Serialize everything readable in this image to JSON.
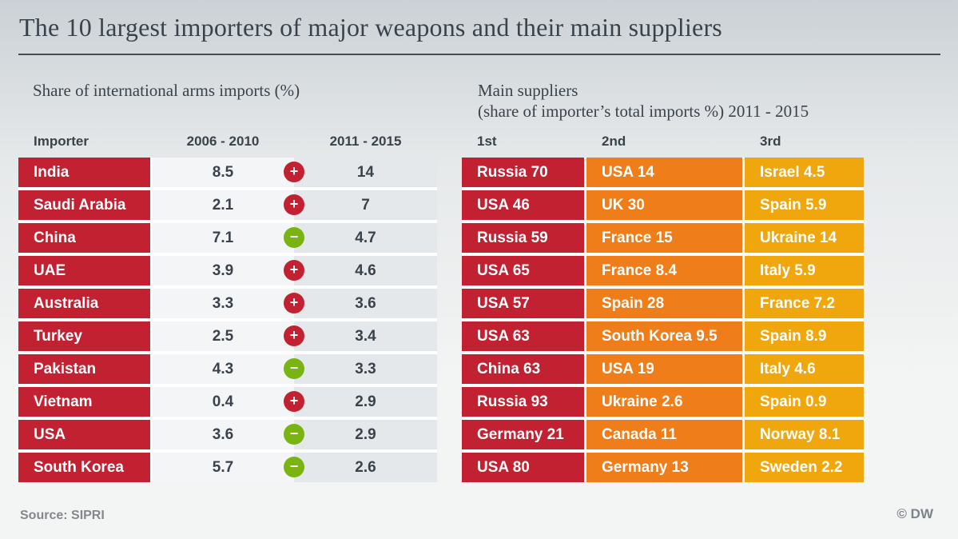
{
  "title": "The 10 largest importers of major weapons and their main suppliers",
  "left_section": {
    "subtitle": "Share of international arms imports (%)",
    "columns": {
      "importer": "Importer",
      "period1": "2006 - 2010",
      "period2": "2011 - 2015"
    },
    "rows": [
      {
        "importer": "India",
        "v2006": "8.5",
        "trend": "up",
        "v2011": "14"
      },
      {
        "importer": "Saudi Arabia",
        "v2006": "2.1",
        "trend": "up",
        "v2011": "7"
      },
      {
        "importer": "China",
        "v2006": "7.1",
        "trend": "down",
        "v2011": "4.7"
      },
      {
        "importer": "UAE",
        "v2006": "3.9",
        "trend": "up",
        "v2011": "4.6"
      },
      {
        "importer": "Australia",
        "v2006": "3.3",
        "trend": "up",
        "v2011": "3.6"
      },
      {
        "importer": "Turkey",
        "v2006": "2.5",
        "trend": "up",
        "v2011": "3.4"
      },
      {
        "importer": "Pakistan",
        "v2006": "4.3",
        "trend": "down",
        "v2011": "3.3"
      },
      {
        "importer": "Vietnam",
        "v2006": "0.4",
        "trend": "up",
        "v2011": "2.9"
      },
      {
        "importer": "USA",
        "v2006": "3.6",
        "trend": "down",
        "v2011": "2.9"
      },
      {
        "importer": "South Korea",
        "v2006": "5.7",
        "trend": "down",
        "v2011": "2.6"
      }
    ]
  },
  "right_section": {
    "subtitle_line1": "Main suppliers",
    "subtitle_line2": "(share of importer’s total imports %) 2011 - 2015",
    "columns": {
      "first": "1st",
      "second": "2nd",
      "third": "3rd"
    },
    "rows": [
      {
        "first": "Russia 70",
        "second": "USA 14",
        "third": "Israel 4.5"
      },
      {
        "first": "USA 46",
        "second": "UK 30",
        "third": "Spain 5.9"
      },
      {
        "first": "Russia 59",
        "second": "France 15",
        "third": "Ukraine 14"
      },
      {
        "first": "USA 65",
        "second": "France 8.4",
        "third": "Italy 5.9"
      },
      {
        "first": "USA 57",
        "second": "Spain 28",
        "third": "France 7.2"
      },
      {
        "first": "USA 63",
        "second": "South Korea 9.5",
        "third": "Spain 8.9"
      },
      {
        "first": "China 63",
        "second": "USA 19",
        "third": "Italy 4.6"
      },
      {
        "first": "Russia 93",
        "second": "Ukraine 2.6",
        "third": "Spain 0.9"
      },
      {
        "first": "Germany 21",
        "second": "Canada 11",
        "third": "Norway 8.1"
      },
      {
        "first": "USA 80",
        "second": "Germany 13",
        "third": "Sweden 2.2"
      }
    ]
  },
  "icons": {
    "plus": "+",
    "minus": "−"
  },
  "footer": {
    "source": "Source: SIPRI",
    "credit": "© DW"
  },
  "colors": {
    "red": "#c22132",
    "orange": "#ee7d1a",
    "amber": "#f0a60d",
    "green": "#7ab412",
    "ink": "#3a424b",
    "cell-light": "#f3f5f6",
    "cell-dark": "#e5e8ea"
  },
  "chart_data": {
    "type": "table",
    "title": "The 10 largest importers of major weapons and their main suppliers",
    "source": "SIPRI",
    "tables": [
      {
        "title": "Share of international arms imports (%)",
        "columns": [
          "Importer",
          "2006 - 2010",
          "change",
          "2011 - 2015"
        ],
        "rows": [
          [
            "India",
            8.5,
            "increase",
            14
          ],
          [
            "Saudi Arabia",
            2.1,
            "increase",
            7
          ],
          [
            "China",
            7.1,
            "decrease",
            4.7
          ],
          [
            "UAE",
            3.9,
            "increase",
            4.6
          ],
          [
            "Australia",
            3.3,
            "increase",
            3.6
          ],
          [
            "Turkey",
            2.5,
            "increase",
            3.4
          ],
          [
            "Pakistan",
            4.3,
            "decrease",
            3.3
          ],
          [
            "Vietnam",
            0.4,
            "increase",
            2.9
          ],
          [
            "USA",
            3.6,
            "decrease",
            2.9
          ],
          [
            "South Korea",
            5.7,
            "decrease",
            2.6
          ]
        ]
      },
      {
        "title": "Main suppliers (share of importer's total imports %) 2011 - 2015",
        "columns": [
          "1st",
          "2nd",
          "3rd"
        ],
        "rows": [
          [
            {
              "supplier": "Russia",
              "share": 70
            },
            {
              "supplier": "USA",
              "share": 14
            },
            {
              "supplier": "Israel",
              "share": 4.5
            }
          ],
          [
            {
              "supplier": "USA",
              "share": 46
            },
            {
              "supplier": "UK",
              "share": 30
            },
            {
              "supplier": "Spain",
              "share": 5.9
            }
          ],
          [
            {
              "supplier": "Russia",
              "share": 59
            },
            {
              "supplier": "France",
              "share": 15
            },
            {
              "supplier": "Ukraine",
              "share": 14
            }
          ],
          [
            {
              "supplier": "USA",
              "share": 65
            },
            {
              "supplier": "France",
              "share": 8.4
            },
            {
              "supplier": "Italy",
              "share": 5.9
            }
          ],
          [
            {
              "supplier": "USA",
              "share": 57
            },
            {
              "supplier": "Spain",
              "share": 28
            },
            {
              "supplier": "France",
              "share": 7.2
            }
          ],
          [
            {
              "supplier": "USA",
              "share": 63
            },
            {
              "supplier": "South Korea",
              "share": 9.5
            },
            {
              "supplier": "Spain",
              "share": 8.9
            }
          ],
          [
            {
              "supplier": "China",
              "share": 63
            },
            {
              "supplier": "USA",
              "share": 19
            },
            {
              "supplier": "Italy",
              "share": 4.6
            }
          ],
          [
            {
              "supplier": "Russia",
              "share": 93
            },
            {
              "supplier": "Ukraine",
              "share": 2.6
            },
            {
              "supplier": "Spain",
              "share": 0.9
            }
          ],
          [
            {
              "supplier": "Germany",
              "share": 21
            },
            {
              "supplier": "Canada",
              "share": 11
            },
            {
              "supplier": "Norway",
              "share": 8.1
            }
          ],
          [
            {
              "supplier": "USA",
              "share": 80
            },
            {
              "supplier": "Germany",
              "share": 13
            },
            {
              "supplier": "Sweden",
              "share": 2.2
            }
          ]
        ]
      }
    ]
  }
}
